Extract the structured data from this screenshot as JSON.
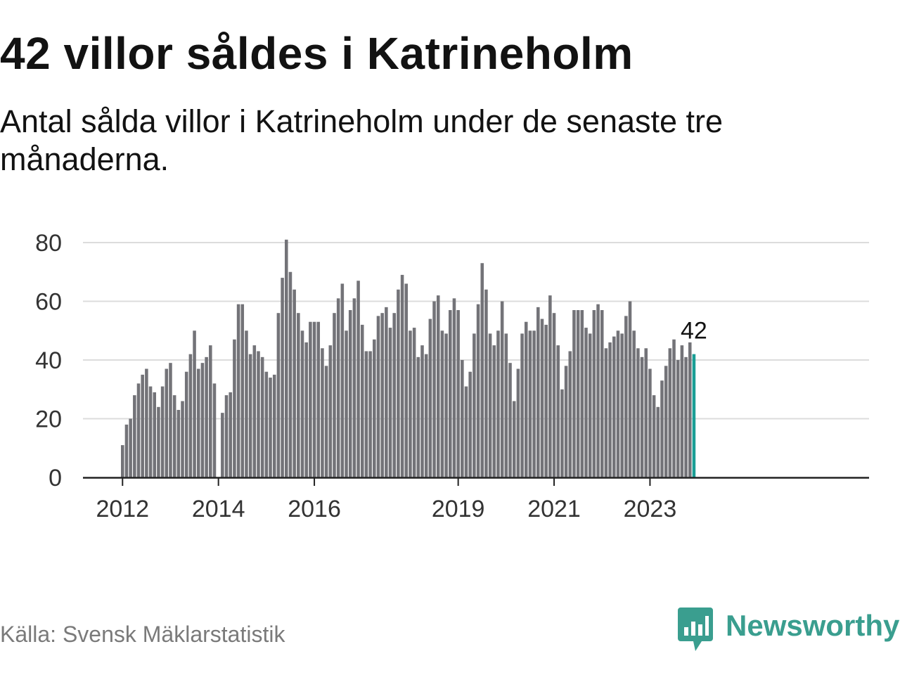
{
  "title": "42 villor såldes i Katrineholm",
  "subtitle": "Antal sålda villor i Katrineholm under de senaste tre månaderna.",
  "source": "Källa: Svensk Mäklarstatistik",
  "brand": {
    "name": "Newsworthy",
    "logo_icon": "bar-chart-speech-bubble-icon",
    "color": "#3a9e8f"
  },
  "colors": {
    "bar": "#737378",
    "highlight": "#1a9e95",
    "grid": "#dcdcdc",
    "axis": "#222222"
  },
  "chart_data": {
    "type": "bar",
    "title": "",
    "xlabel": "",
    "ylabel": "",
    "ylim": [
      0,
      80
    ],
    "yticks": [
      0,
      20,
      40,
      60,
      80
    ],
    "xtick_labels": [
      "2012",
      "2014",
      "2016",
      "2019",
      "2021",
      "2023"
    ],
    "grid": true,
    "legend": "none",
    "annotation": "42",
    "categories": [
      "2012-01",
      "2012-02",
      "2012-03",
      "2012-04",
      "2012-05",
      "2012-06",
      "2012-07",
      "2012-08",
      "2012-09",
      "2012-10",
      "2012-11",
      "2012-12",
      "2013-01",
      "2013-02",
      "2013-03",
      "2013-04",
      "2013-05",
      "2013-06",
      "2013-07",
      "2013-08",
      "2013-09",
      "2013-10",
      "2013-11",
      "2013-12",
      "2014-01",
      "2014-02",
      "2014-03",
      "2014-04",
      "2014-05",
      "2014-06",
      "2014-07",
      "2014-08",
      "2014-09",
      "2014-10",
      "2014-11",
      "2014-12",
      "2015-01",
      "2015-02",
      "2015-03",
      "2015-04",
      "2015-05",
      "2015-06",
      "2015-07",
      "2015-08",
      "2015-09",
      "2015-10",
      "2015-11",
      "2015-12",
      "2016-01",
      "2016-02",
      "2016-03",
      "2016-04",
      "2016-05",
      "2016-06",
      "2016-07",
      "2016-08",
      "2016-09",
      "2016-10",
      "2016-11",
      "2016-12",
      "2017-01",
      "2017-02",
      "2017-03",
      "2017-04",
      "2017-05",
      "2017-06",
      "2017-07",
      "2017-08",
      "2017-09",
      "2017-10",
      "2017-11",
      "2017-12",
      "2018-01",
      "2018-02",
      "2018-03",
      "2018-04",
      "2018-05",
      "2018-06",
      "2018-07",
      "2018-08",
      "2018-09",
      "2018-10",
      "2018-11",
      "2018-12",
      "2019-01",
      "2019-02",
      "2019-03",
      "2019-04",
      "2019-05",
      "2019-06",
      "2019-07",
      "2019-08",
      "2019-09",
      "2019-10",
      "2019-11",
      "2019-12",
      "2020-01",
      "2020-02",
      "2020-03",
      "2020-04",
      "2020-05",
      "2020-06",
      "2020-07",
      "2020-08",
      "2020-09",
      "2020-10",
      "2020-11",
      "2020-12",
      "2021-01",
      "2021-02",
      "2021-03",
      "2021-04",
      "2021-05",
      "2021-06",
      "2021-07",
      "2021-08",
      "2021-09",
      "2021-10",
      "2021-11",
      "2021-12",
      "2022-01",
      "2022-02",
      "2022-03",
      "2022-04",
      "2022-05",
      "2022-06",
      "2022-07",
      "2022-08",
      "2022-09",
      "2022-10",
      "2022-11",
      "2022-12",
      "2023-01",
      "2023-02",
      "2023-03",
      "2023-04",
      "2023-05",
      "2023-06",
      "2023-07",
      "2023-08",
      "2023-09",
      "2023-10",
      "2023-11",
      "2023-12"
    ],
    "values": [
      11,
      18,
      20,
      28,
      32,
      35,
      37,
      31,
      29,
      24,
      31,
      37,
      39,
      28,
      23,
      26,
      36,
      42,
      50,
      37,
      39,
      41,
      45,
      32,
      null,
      22,
      28,
      29,
      47,
      59,
      59,
      50,
      42,
      45,
      43,
      41,
      36,
      34,
      35,
      56,
      68,
      81,
      70,
      64,
      56,
      50,
      46,
      53,
      53,
      53,
      44,
      38,
      45,
      56,
      61,
      66,
      50,
      57,
      61,
      67,
      52,
      43,
      43,
      47,
      55,
      56,
      58,
      51,
      56,
      64,
      69,
      66,
      50,
      51,
      41,
      45,
      42,
      54,
      60,
      62,
      50,
      49,
      57,
      61,
      57,
      40,
      31,
      36,
      49,
      59,
      73,
      64,
      49,
      45,
      50,
      60,
      49,
      39,
      26,
      37,
      49,
      53,
      50,
      50,
      58,
      54,
      52,
      62,
      56,
      45,
      30,
      38,
      43,
      57,
      57,
      57,
      51,
      49,
      57,
      59,
      57,
      44,
      46,
      48,
      50,
      49,
      55,
      60,
      50,
      44,
      41,
      44,
      37,
      28,
      24,
      33,
      38,
      44,
      47,
      40,
      45,
      41,
      46,
      42
    ]
  }
}
